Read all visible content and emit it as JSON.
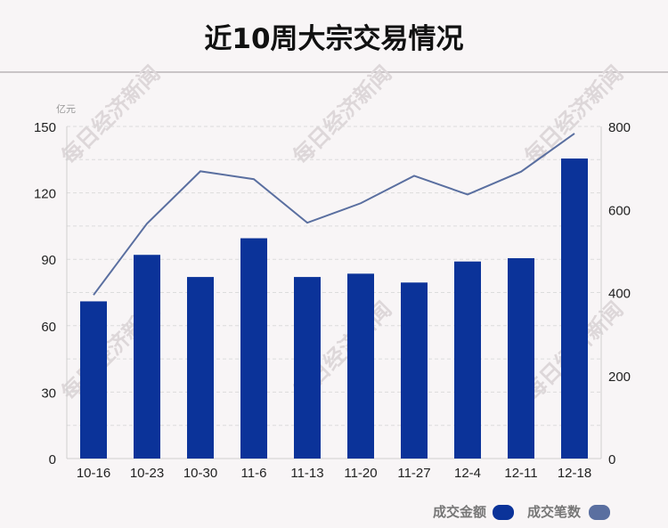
{
  "title": "近10周大宗交易情况",
  "watermark_text": "每日经济新闻",
  "colors": {
    "bar": "#0b3399",
    "line": "#5a6fa0",
    "legend_line_swatch": "#5a6fa0",
    "grid": "#dcdcdc",
    "background": "#f8f5f6"
  },
  "legend": {
    "amount_label": "成交金额",
    "count_label": "成交笔数"
  },
  "chart_data": {
    "type": "bar",
    "title": "近10周大宗交易情况",
    "categories": [
      "10-16",
      "10-23",
      "10-30",
      "11-6",
      "11-13",
      "11-20",
      "11-27",
      "12-4",
      "12-11",
      "12-18"
    ],
    "series": [
      {
        "name": "成交金额",
        "type": "bar",
        "axis": "left",
        "values": [
          71,
          92,
          82,
          99.5,
          82,
          83.5,
          79.5,
          89,
          90.5,
          135.5
        ]
      },
      {
        "name": "成交笔数",
        "type": "line",
        "axis": "right",
        "values": [
          394,
          566,
          692,
          673,
          568,
          615,
          681,
          636,
          691,
          783
        ]
      }
    ],
    "y_left": {
      "unit": "亿元",
      "ylim": [
        0,
        150
      ],
      "ticks": [
        "0",
        "30",
        "60",
        "90",
        "120",
        "150"
      ]
    },
    "y_right": {
      "ylim": [
        0,
        800
      ],
      "ticks": [
        "0",
        "200",
        "400",
        "600",
        "800"
      ]
    },
    "grid": true,
    "legend_position": "bottom-right"
  }
}
